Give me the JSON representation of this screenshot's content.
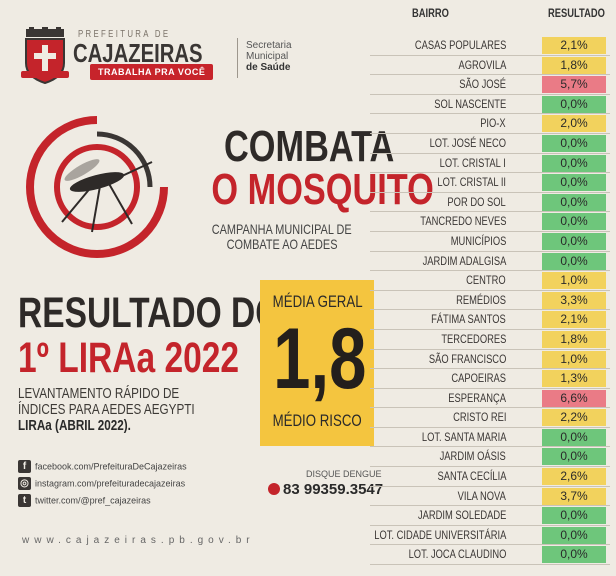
{
  "header": {
    "prefeitura_label": "PREFEITURA DE",
    "city": "CAJAZEIRAS",
    "slogan": "TRABALHA PRA VOCÊ",
    "secretaria": [
      "Secretaria",
      "Municipal",
      "de Saúde"
    ]
  },
  "campaign": {
    "line1": "COMBATA",
    "line2": "O MOSQUITO",
    "subtitle1": "CAMPANHA MUNICIPAL DE",
    "subtitle2": "COMBATE AO AEDES"
  },
  "result": {
    "title1": "RESULTADO DO",
    "title2": "1º LIRAa 2022",
    "desc1": "LEVANTAMENTO RÁPIDO DE",
    "desc2": "ÍNDICES PARA AEDES AEGYPTI",
    "desc3": "LIRAa (ABRIL 2022)."
  },
  "media": {
    "label": "MÉDIA GERAL",
    "value": "1,8",
    "risk": "MÉDIO RISCO"
  },
  "social": {
    "facebook": "facebook.com/PrefeituraDeCajazeiras",
    "instagram": "instagram.com/prefeituradecajazeiras",
    "twitter": "twitter.com/@pref_cajazeiras"
  },
  "disque": {
    "label": "DISQUE DENGUE",
    "phone": "83 99359.3547"
  },
  "website": "www.cajazeiras.pb.gov.br",
  "table": {
    "col_bairro": "BAIRRO",
    "col_resultado": "RESULTADO",
    "status_colors": {
      "low": "#6ec67b",
      "medium": "#f2d25d",
      "high": "#ea7b86"
    },
    "rows": [
      {
        "bairro": "CASAS POPULARES",
        "resultado": "2,1%",
        "status": "medium"
      },
      {
        "bairro": "AGROVILA",
        "resultado": "1,8%",
        "status": "medium"
      },
      {
        "bairro": "SÃO JOSÉ",
        "resultado": "5,7%",
        "status": "high"
      },
      {
        "bairro": "SOL NASCENTE",
        "resultado": "0,0%",
        "status": "low"
      },
      {
        "bairro": "PIO-X",
        "resultado": "2,0%",
        "status": "medium"
      },
      {
        "bairro": "LOT. JOSÉ NECO",
        "resultado": "0,0%",
        "status": "low"
      },
      {
        "bairro": "LOT. CRISTAL I",
        "resultado": "0,0%",
        "status": "low"
      },
      {
        "bairro": "LOT. CRISTAL II",
        "resultado": "0,0%",
        "status": "low"
      },
      {
        "bairro": "POR DO SOL",
        "resultado": "0,0%",
        "status": "low"
      },
      {
        "bairro": "TANCREDO NEVES",
        "resultado": "0,0%",
        "status": "low"
      },
      {
        "bairro": "MUNICÍPIOS",
        "resultado": "0,0%",
        "status": "low"
      },
      {
        "bairro": "JARDIM ADALGISA",
        "resultado": "0,0%",
        "status": "low"
      },
      {
        "bairro": "CENTRO",
        "resultado": "1,0%",
        "status": "medium"
      },
      {
        "bairro": "REMÉDIOS",
        "resultado": "3,3%",
        "status": "medium"
      },
      {
        "bairro": "FÁTIMA SANTOS",
        "resultado": "2,1%",
        "status": "medium"
      },
      {
        "bairro": "TERCEDORES",
        "resultado": "1,8%",
        "status": "medium"
      },
      {
        "bairro": "SÃO FRANCISCO",
        "resultado": "1,0%",
        "status": "medium"
      },
      {
        "bairro": "CAPOEIRAS",
        "resultado": "1,3%",
        "status": "medium"
      },
      {
        "bairro": "ESPERANÇA",
        "resultado": "6,6%",
        "status": "high"
      },
      {
        "bairro": "CRISTO REI",
        "resultado": "2,2%",
        "status": "medium"
      },
      {
        "bairro": "LOT. SANTA MARIA",
        "resultado": "0,0%",
        "status": "low"
      },
      {
        "bairro": "JARDIM OÁSIS",
        "resultado": "0,0%",
        "status": "low"
      },
      {
        "bairro": "SANTA CECÍLIA",
        "resultado": "2,6%",
        "status": "medium"
      },
      {
        "bairro": "VILA NOVA",
        "resultado": "3,7%",
        "status": "medium"
      },
      {
        "bairro": "JARDIM SOLEDADE",
        "resultado": "0,0%",
        "status": "low"
      },
      {
        "bairro": "LOT. CIDADE UNIVERSITÁRIA",
        "resultado": "0,0%",
        "status": "low"
      },
      {
        "bairro": "LOT. JOCA CLAUDINO",
        "resultado": "0,0%",
        "status": "low"
      }
    ]
  }
}
